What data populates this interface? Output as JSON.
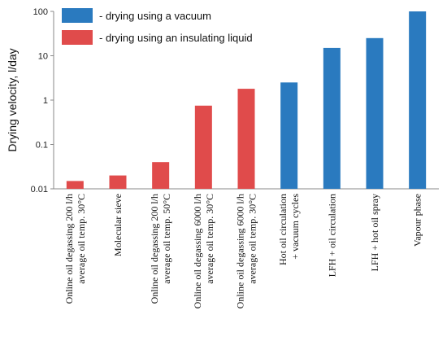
{
  "chart_data": {
    "type": "bar",
    "y_scale": "log",
    "ylim": [
      0.01,
      100
    ],
    "yticks": [
      "0.01",
      "0.1",
      "1",
      "10",
      "100"
    ],
    "ylabel": "Drying velocity,  l/day",
    "grid": false,
    "legend_position": "top-left",
    "legend": [
      {
        "label": "- drying using a vacuum",
        "color": "#2a7abf"
      },
      {
        "label": "- drying using an insulating liquid",
        "color": "#e04b4b"
      }
    ],
    "categories": [
      [
        "Online oil degassing 200 l/h",
        "average oil temp. 30°C"
      ],
      [
        "Molecular sieve"
      ],
      [
        "Online oil degassing 200 l/h",
        "average oil temp. 50°C"
      ],
      [
        "Online oil degassing 6000 l/h",
        "average oil temp. 30°C"
      ],
      [
        "Online oil degassing 6000 l/h",
        "average oil temp. 30°C"
      ],
      [
        "Hot oil circulation",
        "+ vacuum cycles"
      ],
      [
        "LFH + oil circulation"
      ],
      [
        "LFH + hot oil spray"
      ],
      [
        "Vapour phase"
      ]
    ],
    "values": [
      0.015,
      0.02,
      0.04,
      0.75,
      1.8,
      2.5,
      15,
      25,
      100
    ],
    "bar_groups": [
      "liquid",
      "liquid",
      "liquid",
      "liquid",
      "liquid",
      "vacuum",
      "vacuum",
      "vacuum",
      "vacuum"
    ],
    "colors": {
      "vacuum": "#2a7abf",
      "liquid": "#e04b4b"
    }
  }
}
